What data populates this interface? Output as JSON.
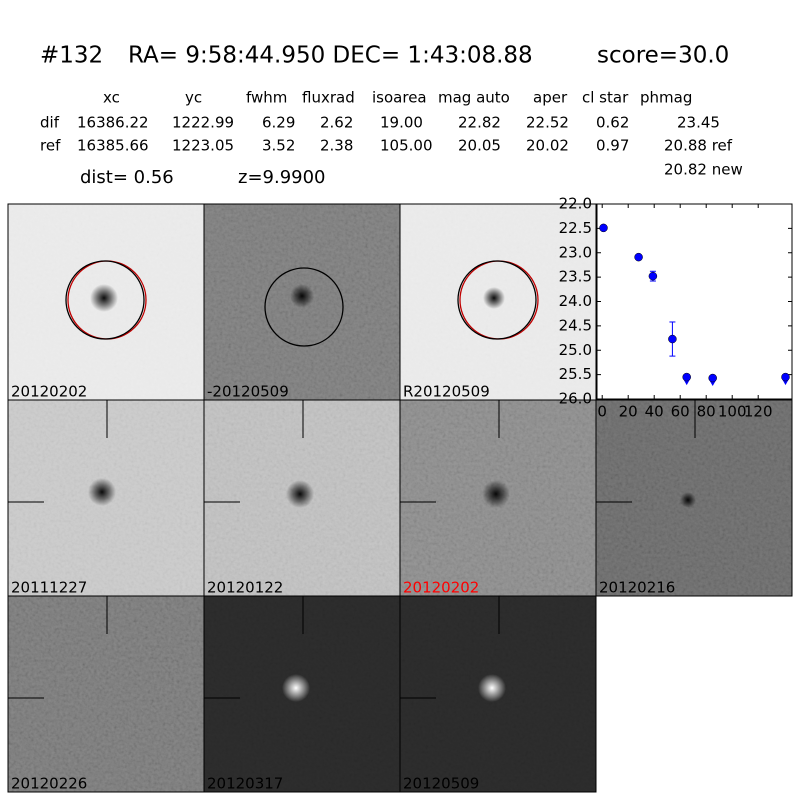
{
  "header": {
    "id": "#132",
    "coords": "RA= 9:58:44.950 DEC= 1:43:08.88",
    "score": "score=30.0"
  },
  "table": {
    "columns": [
      "xc",
      "yc",
      "fwhm",
      "fluxrad",
      "isoarea",
      "mag auto",
      "aper",
      "cl star",
      "phmag"
    ],
    "rows": [
      [
        "dif",
        "16386.22",
        "1222.99",
        "6.29",
        "2.62",
        "19.00",
        "22.82",
        "22.52",
        "0.62",
        "23.45"
      ],
      [
        "ref",
        "16385.66",
        "1223.05",
        "3.52",
        "2.38",
        "105.00",
        "20.05",
        "20.02",
        "0.97",
        "20.88 ref"
      ]
    ],
    "extra": "20.82 new"
  },
  "dist": "dist=  0.56",
  "z": "z=9.9900",
  "stamps": [
    "20120202",
    "-20120509",
    "R20120509",
    "20111227",
    "20120122",
    "20120202",
    "20120216",
    "20120226",
    "20120317",
    "20120509"
  ],
  "chart_data": {
    "type": "scatter",
    "color": "#0000ff",
    "x": [
      1,
      28,
      39,
      54,
      65,
      85,
      141
    ],
    "values": [
      22.49,
      23.09,
      23.48,
      24.77,
      25.55,
      25.57,
      25.55
    ],
    "errors": [
      0.03,
      0.04,
      0.1,
      0.35,
      0.05,
      0.05,
      0.05
    ],
    "upper_limits": [
      false,
      false,
      false,
      false,
      true,
      true,
      true
    ],
    "xlim": [
      -4,
      146
    ],
    "ylim": [
      26,
      22
    ],
    "inverted_y": true,
    "xticks": [
      0,
      20,
      40,
      60,
      80,
      100,
      120
    ],
    "yticks": [
      {
        "value": 22,
        "label": "22.0"
      },
      {
        "value": 22.5,
        "label": "22.5"
      },
      {
        "value": 23,
        "label": "23.0"
      },
      {
        "value": 23.5,
        "label": "23.5"
      },
      {
        "value": 24,
        "label": "24.0"
      },
      {
        "value": 24.5,
        "label": "24.5"
      },
      {
        "value": 25,
        "label": "25.0"
      },
      {
        "value": 25.5,
        "label": "25.5"
      },
      {
        "value": 26,
        "label": "26.0"
      }
    ]
  }
}
